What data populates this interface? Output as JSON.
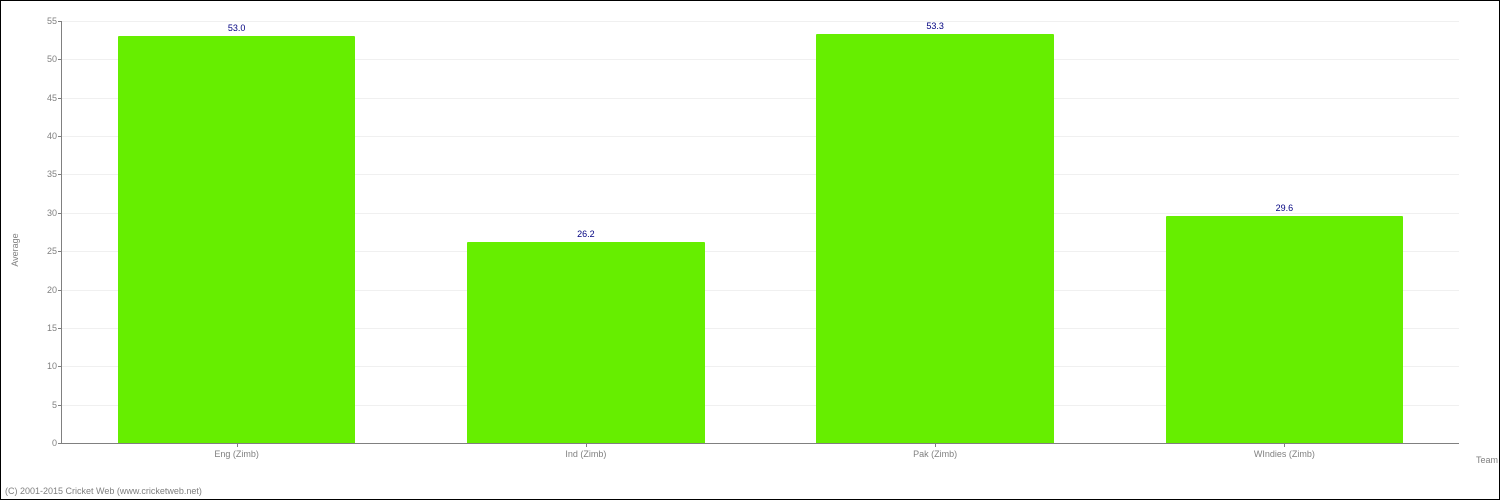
{
  "chart": {
    "type": "bar",
    "categories": [
      "Eng (Zimb)",
      "Ind (Zimb)",
      "Pak (Zimb)",
      "WIndies (Zimb)"
    ],
    "values": [
      53.0,
      26.2,
      53.3,
      29.6
    ],
    "value_labels": [
      "53.0",
      "26.2",
      "53.3",
      "29.6"
    ],
    "bar_color": "#66ee00",
    "value_label_color": "#000080",
    "ylabel": "Average",
    "xlabel": "Team",
    "ylim_min": 0,
    "ylim_max": 55,
    "ytick_step": 5,
    "yticks": [
      0,
      5,
      10,
      15,
      20,
      25,
      30,
      35,
      40,
      45,
      50,
      55
    ],
    "grid_color": "#f0f0f0",
    "axis_color": "#808080",
    "tick_label_color": "#808080",
    "background_color": "#ffffff",
    "tick_fontsize": 9,
    "label_fontsize": 9,
    "value_fontsize": 9,
    "bar_width_ratio": 0.68
  },
  "copyright": "(C) 2001-2015 Cricket Web (www.cricketweb.net)"
}
